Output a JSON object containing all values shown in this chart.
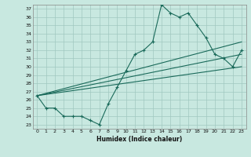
{
  "xlabel": "Humidex (Indice chaleur)",
  "bg_color": "#c8e8e0",
  "grid_color": "#a0c8c0",
  "line_color": "#1a6a5a",
  "xlim": [
    -0.5,
    23.5
  ],
  "ylim": [
    22.5,
    37.5
  ],
  "yticks": [
    23,
    24,
    25,
    26,
    27,
    28,
    29,
    30,
    31,
    32,
    33,
    34,
    35,
    36,
    37
  ],
  "xticks": [
    0,
    1,
    2,
    3,
    4,
    5,
    6,
    7,
    8,
    9,
    10,
    11,
    12,
    13,
    14,
    15,
    16,
    17,
    18,
    19,
    20,
    21,
    22,
    23
  ],
  "line1_x": [
    0,
    1,
    2,
    3,
    4,
    5,
    6,
    7,
    8,
    9,
    10,
    11,
    12,
    13,
    14,
    15,
    16,
    17,
    18,
    19,
    20,
    21,
    22,
    23
  ],
  "line1_y": [
    26.5,
    25.0,
    25.0,
    24.0,
    24.0,
    24.0,
    23.5,
    23.0,
    25.5,
    27.5,
    29.5,
    31.5,
    32.0,
    33.0,
    37.5,
    36.5,
    36.0,
    36.5,
    35.0,
    33.5,
    31.5,
    31.0,
    30.0,
    32.0
  ],
  "line2_x": [
    0,
    23
  ],
  "line2_y": [
    26.5,
    33.0
  ],
  "line3_x": [
    0,
    23
  ],
  "line3_y": [
    26.5,
    31.5
  ],
  "line4_x": [
    0,
    23
  ],
  "line4_y": [
    26.5,
    30.0
  ]
}
